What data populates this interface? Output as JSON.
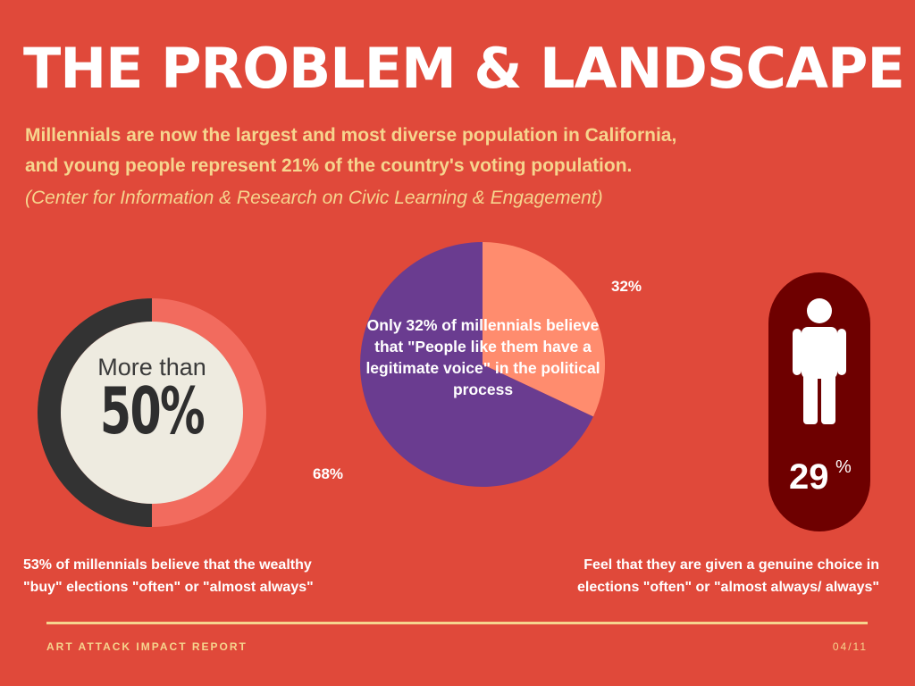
{
  "header": {
    "title": "THE PROBLEM & LANDSCAPE",
    "subtitle_line1": "Millennials are now the largest and most diverse population in California,",
    "subtitle_line2": "and young people represent 21% of the country's voting population.",
    "source": "(Center for Information & Research on Civic Learning & Engagement)"
  },
  "ring_stat": {
    "label_top": "More than",
    "label_big": "50%",
    "progress_percent": 50,
    "caption_line1": "53%  of millennials believe that the wealthy",
    "caption_line2": "\"buy\" elections \"often\" or \"almost always\""
  },
  "chart_data": {
    "type": "pie",
    "title": "",
    "slices": [
      {
        "label": "32%",
        "value": 32,
        "color": "#FF8C6E"
      },
      {
        "label": "68%",
        "value": 68,
        "color": "#6A3C90"
      }
    ],
    "annotation_line1": "Only 32% of millennials believe",
    "annotation_line2": "that \"People like them have a",
    "annotation_line3": "legitimate voice\" in the political",
    "annotation_line4": "process"
  },
  "person_stat": {
    "value": "29",
    "unit": "%",
    "caption_line1": "Feel that they are given a genuine choice in",
    "caption_line2": "elections \"often\" or \"almost always/ always\""
  },
  "footer": {
    "report_name": "ART ATTACK IMPACT REPORT",
    "page": "04/11"
  },
  "colors": {
    "background": "#E0493A",
    "accent_yellow": "#F6D58E",
    "ring_dark": "#333333",
    "ring_light": "#F26B5E",
    "ring_center": "#EEEBE0",
    "pill": "#6E0000",
    "pie_salmon": "#FF8C6E",
    "pie_purple": "#6A3C90"
  }
}
